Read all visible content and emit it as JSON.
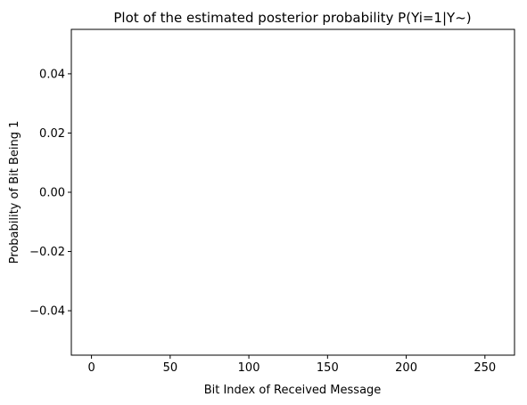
{
  "chart_data": {
    "type": "scatter",
    "title": "Plot of the estimated posterior probability P(Yi=1|Y~)",
    "xlabel": "Bit Index of Received Message",
    "ylabel": "Probability of Bit Being 1",
    "xlim": [
      -12.8,
      268.8
    ],
    "ylim": [
      -0.055,
      0.055
    ],
    "xticks": [
      0,
      50,
      100,
      150,
      200,
      250
    ],
    "xtick_labels": [
      "0",
      "50",
      "100",
      "150",
      "200",
      "250"
    ],
    "yticks": [
      -0.04,
      -0.02,
      0.0,
      0.02,
      0.04
    ],
    "ytick_labels": [
      "−0.04",
      "−0.02",
      "0.00",
      "0.02",
      "0.04"
    ],
    "grid": false,
    "series": [
      {
        "x": [],
        "y": []
      }
    ]
  }
}
